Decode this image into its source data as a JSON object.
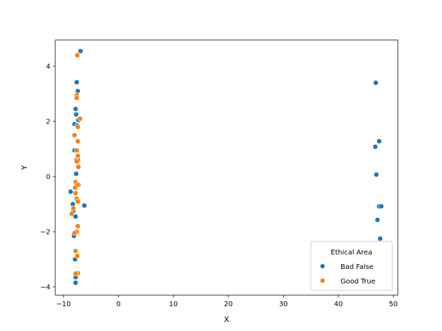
{
  "chart_data": {
    "type": "scatter",
    "title": "",
    "xlabel": "X",
    "ylabel": "Y",
    "xlim": [
      -11.5,
      50.8
    ],
    "ylim": [
      -4.3,
      4.95
    ],
    "xticks": [
      -10,
      0,
      10,
      20,
      30,
      40,
      50
    ],
    "yticks": [
      -4,
      -2,
      0,
      2,
      4
    ],
    "grid": false,
    "legend": {
      "title": "Ethical Area",
      "position": "lower-right"
    },
    "series": [
      {
        "name": "Bad False",
        "color": "#1f77b4",
        "points": [
          [
            -6.9,
            4.55
          ],
          [
            -7.6,
            3.42
          ],
          [
            -7.4,
            3.1
          ],
          [
            -7.8,
            2.45
          ],
          [
            -7.7,
            2.25
          ],
          [
            -7.3,
            2.05
          ],
          [
            -8.0,
            1.9
          ],
          [
            -7.5,
            1.85
          ],
          [
            -8.0,
            0.95
          ],
          [
            -7.4,
            0.6
          ],
          [
            -7.7,
            0.1
          ],
          [
            -8.7,
            -0.55
          ],
          [
            -7.3,
            -0.3
          ],
          [
            -6.2,
            -1.05
          ],
          [
            -8.3,
            -1.0
          ],
          [
            -8.2,
            -1.25
          ],
          [
            -7.8,
            -1.45
          ],
          [
            -8.1,
            -2.15
          ],
          [
            -7.9,
            -3.0
          ],
          [
            -7.8,
            -3.65
          ],
          [
            -7.8,
            -3.85
          ],
          [
            46.8,
            3.4
          ],
          [
            47.4,
            1.28
          ],
          [
            46.7,
            1.08
          ],
          [
            46.9,
            0.07
          ],
          [
            47.4,
            -1.08
          ],
          [
            47.8,
            -1.08
          ],
          [
            47.1,
            -1.57
          ],
          [
            47.6,
            -2.25
          ]
        ]
      },
      {
        "name": "Good True",
        "color": "#ff7f0e",
        "points": [
          [
            -7.5,
            4.4
          ],
          [
            -7.6,
            2.95
          ],
          [
            -7.6,
            2.85
          ],
          [
            -7.0,
            2.1
          ],
          [
            -7.4,
            1.8
          ],
          [
            -8.0,
            1.5
          ],
          [
            -7.4,
            1.28
          ],
          [
            -7.6,
            0.95
          ],
          [
            -7.4,
            0.75
          ],
          [
            -7.7,
            0.6
          ],
          [
            -7.6,
            0.55
          ],
          [
            -7.3,
            0.35
          ],
          [
            -7.8,
            -0.2
          ],
          [
            -7.5,
            -0.3
          ],
          [
            -7.9,
            -0.4
          ],
          [
            -7.8,
            -0.6
          ],
          [
            -7.6,
            -0.8
          ],
          [
            -7.4,
            -0.9
          ],
          [
            -8.2,
            -1.15
          ],
          [
            -8.5,
            -1.35
          ],
          [
            -7.4,
            -1.8
          ],
          [
            -7.6,
            -2.0
          ],
          [
            -8.0,
            -2.05
          ],
          [
            -7.8,
            -2.7
          ],
          [
            -7.5,
            -2.88
          ],
          [
            -7.4,
            -3.5
          ],
          [
            -7.8,
            -3.52
          ]
        ]
      }
    ]
  }
}
